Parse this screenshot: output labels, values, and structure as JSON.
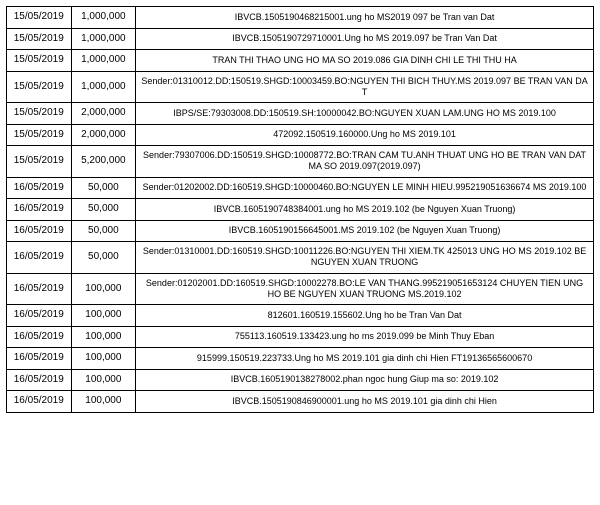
{
  "table": {
    "columns": [
      "date",
      "amount",
      "description"
    ],
    "col_widths_pct": [
      11,
      11,
      78
    ],
    "border_color": "#000000",
    "background_color": "#ffffff",
    "text_color": "#000000",
    "font_family": "Arial",
    "cell_fontsize_pt": 8,
    "desc_fontsize_pt": 7,
    "rows": [
      {
        "date": "15/05/2019",
        "amount": "1,000,000",
        "description": "IBVCB.1505190468215001.ung ho MS2019 097 be Tran van Dat"
      },
      {
        "date": "15/05/2019",
        "amount": "1,000,000",
        "description": "IBVCB.1505190729710001.Ung ho MS 2019.097 be Tran Van Dat"
      },
      {
        "date": "15/05/2019",
        "amount": "1,000,000",
        "description": "TRAN THI THAO UNG HO MA SO 2019.086 GIA DINH CHI LE THI THU HA"
      },
      {
        "date": "15/05/2019",
        "amount": "1,000,000",
        "description": "Sender:01310012.DD:150519.SHGD:10003459.BO:NGUYEN THI BICH THUY.MS 2019.097 BE TRAN VAN DA T"
      },
      {
        "date": "15/05/2019",
        "amount": "2,000,000",
        "description": "IBPS/SE:79303008.DD:150519.SH:10000042.BO:NGUYEN XUAN LAM.UNG HO MS 2019.100"
      },
      {
        "date": "15/05/2019",
        "amount": "2,000,000",
        "description": "472092.150519.160000.Ung ho MS 2019.101"
      },
      {
        "date": "15/05/2019",
        "amount": "5,200,000",
        "description": "Sender:79307006.DD:150519.SHGD:10008772.BO:TRAN CAM TU.ANH THUAT UNG HO BE TRAN VAN DAT MA SO 2019.097(2019.097)"
      },
      {
        "date": "16/05/2019",
        "amount": "50,000",
        "description": "Sender:01202002.DD:160519.SHGD:10000460.BO:NGUYEN LE MINH HIEU.995219051636674 MS 2019.100"
      },
      {
        "date": "16/05/2019",
        "amount": "50,000",
        "description": "IBVCB.1605190748384001.ung ho MS 2019.102 (be Nguyen Xuan Truong)"
      },
      {
        "date": "16/05/2019",
        "amount": "50,000",
        "description": "IBVCB.1605190156645001.MS 2019.102 (be Nguyen Xuan Truong)"
      },
      {
        "date": "16/05/2019",
        "amount": "50,000",
        "description": "Sender:01310001.DD:160519.SHGD:10011226.BO:NGUYEN THI XIEM.TK 425013 UNG HO MS 2019.102 BE NGUYEN XUAN TRUONG"
      },
      {
        "date": "16/05/2019",
        "amount": "100,000",
        "description": "Sender:01202001.DD:160519.SHGD:10002278.BO:LE VAN THANG.995219051653124 CHUYEN TIEN UNG HO BE NGUYEN XUAN TRUONG MS.2019.102"
      },
      {
        "date": "16/05/2019",
        "amount": "100,000",
        "description": "812601.160519.155602.Ung ho be Tran Van Dat"
      },
      {
        "date": "16/05/2019",
        "amount": "100,000",
        "description": "755113.160519.133423.ung ho ms 2019.099 be Minh Thuy Eban"
      },
      {
        "date": "16/05/2019",
        "amount": "100,000",
        "description": "915999.150519.223733.Ung ho MS 2019.101 gia dinh chi Hien FT19136565600670"
      },
      {
        "date": "16/05/2019",
        "amount": "100,000",
        "description": "IBVCB.1605190138278002.phan ngoc hung Giup ma so: 2019.102"
      },
      {
        "date": "16/05/2019",
        "amount": "100,000",
        "description": "IBVCB.1505190846900001.ung ho MS 2019.101 gia dinh chi Hien"
      }
    ]
  }
}
